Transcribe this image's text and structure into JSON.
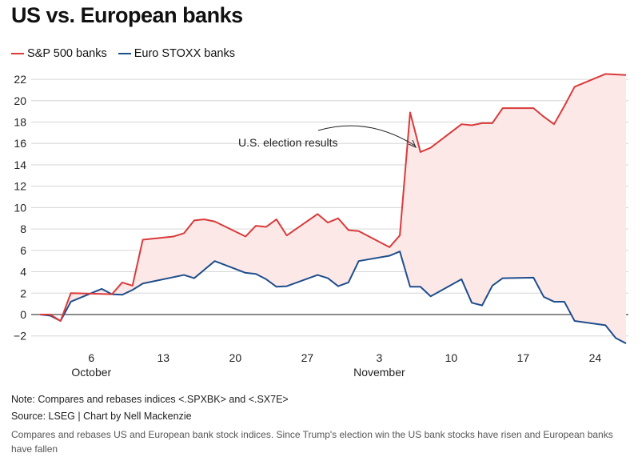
{
  "title": "US vs. European banks",
  "notes": {
    "note": "Note: Compares and rebases indices <.SPXBK> and <.SX7E>",
    "source": "Source: LSEG | Chart by Nell Mackenzie",
    "caption": "Compares and rebases US and European bank stock indices. Since Trump's election win the US bank stocks have risen and European banks have fallen"
  },
  "chart_data": {
    "type": "line",
    "title": "US vs. European banks",
    "xlabel": "",
    "ylabel": "",
    "x_unit": "days since Oct 1",
    "ylim": [
      -3,
      23
    ],
    "yticks": [
      -2,
      0,
      2,
      4,
      6,
      8,
      10,
      12,
      14,
      16,
      18,
      20,
      22
    ],
    "ytick_labels": [
      "−2",
      "0",
      "2",
      "4",
      "6",
      "8",
      "10",
      "12",
      "14",
      "16",
      "18",
      "20",
      "22"
    ],
    "xticks": [
      {
        "day": 5,
        "label": "6",
        "month": "October"
      },
      {
        "day": 12,
        "label": "13",
        "month": ""
      },
      {
        "day": 19,
        "label": "20",
        "month": ""
      },
      {
        "day": 26,
        "label": "27",
        "month": ""
      },
      {
        "day": 33,
        "label": "3",
        "month": "November"
      },
      {
        "day": 40,
        "label": "10",
        "month": ""
      },
      {
        "day": 47,
        "label": "17",
        "month": ""
      },
      {
        "day": 54,
        "label": "24",
        "month": ""
      }
    ],
    "grid": true,
    "legend_position": "top-left",
    "annotation": {
      "text": "U.S. election results",
      "day": 37,
      "value": 15.6
    },
    "series": [
      {
        "name": "S&P 500 banks",
        "color": "#d93a3a",
        "x": [
          0,
          1,
          2,
          3,
          7,
          8,
          9,
          10,
          13,
          14,
          15,
          16,
          17,
          20,
          21,
          22,
          23,
          24,
          27,
          28,
          29,
          30,
          31,
          34,
          35,
          36,
          37,
          38,
          41,
          42,
          43,
          44,
          45,
          48,
          49,
          50,
          51,
          52,
          55,
          57
        ],
        "values": [
          0,
          0,
          -0.6,
          2.0,
          1.9,
          3.0,
          2.7,
          7.0,
          7.3,
          7.6,
          8.8,
          8.9,
          8.7,
          7.3,
          8.3,
          8.2,
          8.9,
          7.4,
          9.4,
          8.6,
          9.0,
          7.9,
          7.8,
          6.3,
          7.4,
          18.9,
          15.2,
          15.6,
          17.8,
          17.7,
          17.9,
          17.9,
          19.3,
          19.3,
          18.5,
          17.8,
          19.5,
          21.3,
          22.5,
          22.4
        ]
      },
      {
        "name": "Euro STOXX banks",
        "color": "#1f4e8c",
        "x": [
          0,
          1,
          2,
          3,
          6,
          7,
          8,
          9,
          10,
          14,
          15,
          17,
          20,
          21,
          22,
          23,
          24,
          27,
          28,
          29,
          30,
          31,
          34,
          35,
          36,
          37,
          38,
          41,
          42,
          43,
          44,
          45,
          48,
          49,
          50,
          51,
          52,
          55,
          56,
          57
        ],
        "values": [
          0,
          -0.1,
          -0.6,
          1.2,
          2.4,
          1.9,
          1.85,
          2.3,
          2.9,
          3.7,
          3.4,
          5.0,
          3.9,
          3.8,
          3.3,
          2.6,
          2.65,
          3.7,
          3.4,
          2.65,
          3.0,
          5.0,
          5.5,
          5.9,
          2.6,
          2.6,
          1.7,
          3.3,
          1.1,
          0.85,
          2.7,
          3.4,
          3.45,
          1.65,
          1.2,
          1.2,
          -0.6,
          -1.0,
          -2.2,
          -2.7
        ]
      }
    ],
    "fill_color": "#fde8e8"
  }
}
